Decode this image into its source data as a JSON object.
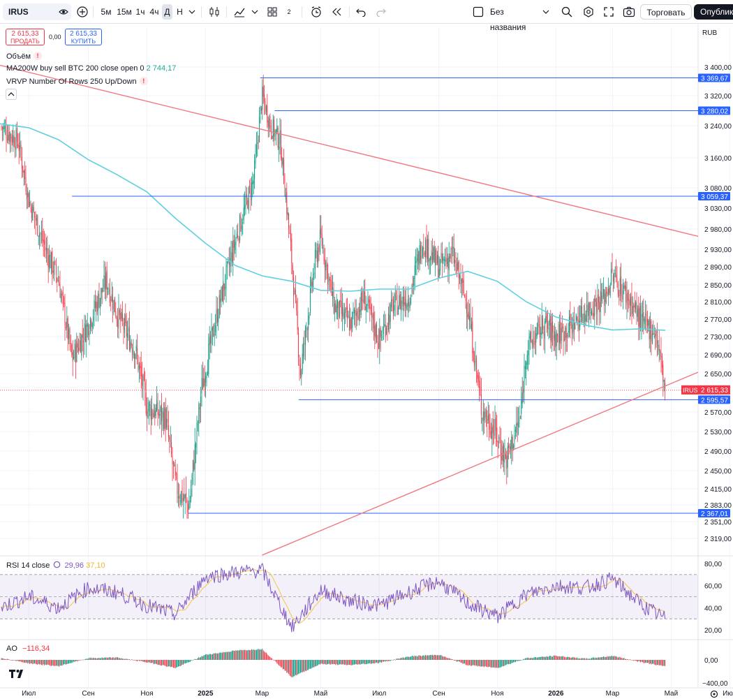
{
  "toolbar": {
    "symbol": "IRUS",
    "intervals": [
      "5м",
      "15м",
      "1ч",
      "4ч",
      "Д",
      "Н"
    ],
    "active_interval": "Д",
    "layouts_count": "2",
    "layout_name": "Без названия",
    "trade_label": "Торговать",
    "publish_label": "Опублико"
  },
  "quote": {
    "sell_price": "2 615,33",
    "sell_label": "ПРОДАТЬ",
    "spread": "0,00",
    "buy_price": "2 615,33",
    "buy_label": "КУПИТЬ"
  },
  "legend": {
    "volume": "Объём",
    "ma_label": "MA200W buy sell BTC 200 close open 0",
    "ma_value": "2 744,17",
    "vrvp": "VRVP Number Of Rows 250 Up/Down",
    "rsi_label": "RSI 14 close",
    "rsi_value": "29,96",
    "rsi_ma": "37,10",
    "ao_label": "AO",
    "ao_value": "−116,34"
  },
  "colors": {
    "up": "#089981",
    "down": "#f23645",
    "ma": "#5ed0e0",
    "hline": "#2962ff",
    "trend": "#f07a80",
    "rsi": "#7e57c2",
    "rsi_ma": "#f5c542"
  },
  "chart_data": [
    {
      "type": "candlestick",
      "currency": "RUB",
      "symbol": "IRUS",
      "last_price": "2 615,33",
      "ylim": [
        2300,
        3440
      ],
      "y_ticks": [
        "3 400,00",
        "3 320,00",
        "3 240,00",
        "3 160,00",
        "3 080,00",
        "3 030,00",
        "2 980,00",
        "2 930,00",
        "2 890,00",
        "2 850,00",
        "2 810,00",
        "2 770,00",
        "2 730,00",
        "2 690,00",
        "2 650,00",
        "2 570,00",
        "2 530,00",
        "2 490,00",
        "2 450,00",
        "2 415,00",
        "2 383,00",
        "2 351,00",
        "2 319,00"
      ],
      "x_ticks": [
        "Июл",
        "Сен",
        "Ноя",
        "2025",
        "Мар",
        "Май",
        "Июл",
        "Сен",
        "Ноя",
        "2026",
        "Мар",
        "Май",
        "Июл"
      ],
      "horizontal_levels": [
        {
          "label": "3 369,67",
          "value": 3369.67
        },
        {
          "label": "3 280,02",
          "value": 3280.02
        },
        {
          "label": "3 059,37",
          "value": 3059.37
        },
        {
          "label": "2 595,57",
          "value": 2595.57
        },
        {
          "label": "2 367,01",
          "value": 2367.01
        }
      ],
      "trend_lines": [
        {
          "name": "resistance",
          "from": [
            "2024-06",
            3405
          ],
          "to": [
            "2026-07",
            2960
          ]
        },
        {
          "name": "support",
          "from": [
            "2025-03",
            2290
          ],
          "to": [
            "2026-07",
            2650
          ]
        }
      ],
      "ma_series": [
        {
          "x": "2024-06",
          "y": 3245
        },
        {
          "x": "2024-07",
          "y": 3235
        },
        {
          "x": "2024-08",
          "y": 3205
        },
        {
          "x": "2024-09",
          "y": 3155
        },
        {
          "x": "2024-10",
          "y": 3115
        },
        {
          "x": "2024-11",
          "y": 3070
        },
        {
          "x": "2024-12",
          "y": 3005
        },
        {
          "x": "2025-01",
          "y": 2945
        },
        {
          "x": "2025-02",
          "y": 2893
        },
        {
          "x": "2025-03",
          "y": 2870
        },
        {
          "x": "2025-04",
          "y": 2858
        },
        {
          "x": "2025-05",
          "y": 2837
        },
        {
          "x": "2025-06",
          "y": 2835
        },
        {
          "x": "2025-07",
          "y": 2840
        },
        {
          "x": "2025-08",
          "y": 2840
        },
        {
          "x": "2025-09",
          "y": 2865
        },
        {
          "x": "2025-10",
          "y": 2880
        },
        {
          "x": "2025-11",
          "y": 2858
        },
        {
          "x": "2025-12",
          "y": 2810
        },
        {
          "x": "2026-01",
          "y": 2775
        },
        {
          "x": "2026-02",
          "y": 2756
        },
        {
          "x": "2026-03",
          "y": 2745
        },
        {
          "x": "2026-04",
          "y": 2748
        },
        {
          "x": "2026-04-25",
          "y": 2744.17
        }
      ],
      "price_path": [
        {
          "x": "2024-06",
          "y": 3240
        },
        {
          "x": "2024-06-20",
          "y": 3200
        },
        {
          "x": "2024-07",
          "y": 3050
        },
        {
          "x": "2024-07-20",
          "y": 2920
        },
        {
          "x": "2024-08",
          "y": 2860
        },
        {
          "x": "2024-08-15",
          "y": 2680
        },
        {
          "x": "2024-09",
          "y": 2760
        },
        {
          "x": "2024-09-20",
          "y": 2860
        },
        {
          "x": "2024-10",
          "y": 2780
        },
        {
          "x": "2024-10-20",
          "y": 2700
        },
        {
          "x": "2024-11",
          "y": 2580
        },
        {
          "x": "2024-11-20",
          "y": 2560
        },
        {
          "x": "2024-12",
          "y": 2420
        },
        {
          "x": "2024-12-15",
          "y": 2380
        },
        {
          "x": "2024-12-28",
          "y": 2620
        },
        {
          "x": "2025-01-15",
          "y": 2800
        },
        {
          "x": "2025-02",
          "y": 2950
        },
        {
          "x": "2025-02-20",
          "y": 3100
        },
        {
          "x": "2025-03",
          "y": 3320
        },
        {
          "x": "2025-03-10",
          "y": 3240
        },
        {
          "x": "2025-03-20",
          "y": 3200
        },
        {
          "x": "2025-04",
          "y": 2900
        },
        {
          "x": "2025-04-10",
          "y": 2650
        },
        {
          "x": "2025-04-25",
          "y": 2900
        },
        {
          "x": "2025-05",
          "y": 2960
        },
        {
          "x": "2025-05-15",
          "y": 2800
        },
        {
          "x": "2025-06",
          "y": 2760
        },
        {
          "x": "2025-06-15",
          "y": 2820
        },
        {
          "x": "2025-07",
          "y": 2720
        },
        {
          "x": "2025-07-15",
          "y": 2800
        },
        {
          "x": "2025-08",
          "y": 2820
        },
        {
          "x": "2025-08-15",
          "y": 2950
        },
        {
          "x": "2025-09",
          "y": 2890
        },
        {
          "x": "2025-09-15",
          "y": 2920
        },
        {
          "x": "2025-10",
          "y": 2800
        },
        {
          "x": "2025-10-15",
          "y": 2580
        },
        {
          "x": "2025-11",
          "y": 2520
        },
        {
          "x": "2025-11-10",
          "y": 2470
        },
        {
          "x": "2025-11-25",
          "y": 2560
        },
        {
          "x": "2025-12",
          "y": 2700
        },
        {
          "x": "2025-12-20",
          "y": 2760
        },
        {
          "x": "2026-01",
          "y": 2730
        },
        {
          "x": "2026-01-20",
          "y": 2760
        },
        {
          "x": "2026-02",
          "y": 2790
        },
        {
          "x": "2026-02-20",
          "y": 2820
        },
        {
          "x": "2026-03",
          "y": 2870
        },
        {
          "x": "2026-03-20",
          "y": 2810
        },
        {
          "x": "2026-04",
          "y": 2760
        },
        {
          "x": "2026-04-15",
          "y": 2740
        },
        {
          "x": "2026-04-25",
          "y": 2615.33
        }
      ]
    },
    {
      "type": "line",
      "name": "RSI 14 close",
      "ylim": [
        15,
        85
      ],
      "y_ticks": [
        "80,00",
        "60,00",
        "40,00",
        "20,00"
      ],
      "bands": [
        30,
        50,
        70
      ],
      "series_values": [
        {
          "x": "2024-06",
          "y": 40
        },
        {
          "x": "2024-07",
          "y": 50
        },
        {
          "x": "2024-08",
          "y": 40
        },
        {
          "x": "2024-09",
          "y": 58
        },
        {
          "x": "2024-10",
          "y": 54
        },
        {
          "x": "2024-11",
          "y": 42
        },
        {
          "x": "2024-12",
          "y": 34
        },
        {
          "x": "2025-01",
          "y": 68
        },
        {
          "x": "2025-02",
          "y": 72
        },
        {
          "x": "2025-03",
          "y": 74
        },
        {
          "x": "2025-04",
          "y": 22
        },
        {
          "x": "2025-05",
          "y": 56
        },
        {
          "x": "2025-06",
          "y": 46
        },
        {
          "x": "2025-07",
          "y": 42
        },
        {
          "x": "2025-08",
          "y": 54
        },
        {
          "x": "2025-09",
          "y": 64
        },
        {
          "x": "2025-10",
          "y": 44
        },
        {
          "x": "2025-11",
          "y": 32
        },
        {
          "x": "2025-12",
          "y": 52
        },
        {
          "x": "2026-01",
          "y": 60
        },
        {
          "x": "2026-02",
          "y": 58
        },
        {
          "x": "2026-03",
          "y": 66
        },
        {
          "x": "2026-04",
          "y": 42
        },
        {
          "x": "2026-04-25",
          "y": 29.96
        }
      ]
    },
    {
      "type": "bar",
      "name": "AO",
      "ylim": [
        -420,
        220
      ],
      "y_ticks": [
        "0,00",
        "−400,00"
      ],
      "series_values": [
        {
          "x": "2024-06",
          "y": 40
        },
        {
          "x": "2024-07",
          "y": -60
        },
        {
          "x": "2024-08",
          "y": -110
        },
        {
          "x": "2024-09",
          "y": 30
        },
        {
          "x": "2024-10",
          "y": 40
        },
        {
          "x": "2024-11",
          "y": -40
        },
        {
          "x": "2024-12",
          "y": -140
        },
        {
          "x": "2025-01",
          "y": 90
        },
        {
          "x": "2025-02",
          "y": 160
        },
        {
          "x": "2025-03",
          "y": 190
        },
        {
          "x": "2025-04",
          "y": -300
        },
        {
          "x": "2025-05",
          "y": -70
        },
        {
          "x": "2025-06",
          "y": -90
        },
        {
          "x": "2025-07",
          "y": -50
        },
        {
          "x": "2025-08",
          "y": 60
        },
        {
          "x": "2025-09",
          "y": 90
        },
        {
          "x": "2025-10",
          "y": -90
        },
        {
          "x": "2025-11",
          "y": -140
        },
        {
          "x": "2025-12",
          "y": 30
        },
        {
          "x": "2026-01",
          "y": 70
        },
        {
          "x": "2026-02",
          "y": 20
        },
        {
          "x": "2026-03",
          "y": 70
        },
        {
          "x": "2026-04",
          "y": -40
        },
        {
          "x": "2026-04-25",
          "y": -116.34
        }
      ]
    }
  ]
}
